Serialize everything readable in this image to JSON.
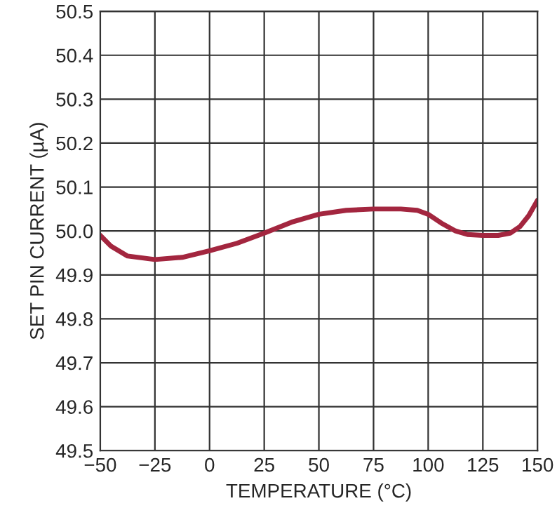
{
  "chart_data": {
    "type": "line",
    "xlabel": "TEMPERATURE (°C)",
    "ylabel": "SET PIN CURRENT (µA)",
    "series": [
      {
        "color": "#a3263f",
        "x": [
          -50,
          -45,
          -37.5,
          -25,
          -12.5,
          0,
          12.5,
          25,
          37.5,
          50,
          62.5,
          75,
          87.5,
          95,
          100,
          106,
          112.5,
          118,
          125,
          132,
          137.5,
          142,
          146,
          150
        ],
        "values": [
          49.99,
          49.965,
          49.943,
          49.935,
          49.94,
          49.955,
          49.972,
          49.995,
          50.02,
          50.038,
          50.047,
          50.05,
          50.05,
          50.047,
          50.038,
          50.018,
          50.0,
          49.992,
          49.99,
          49.99,
          49.995,
          50.01,
          50.035,
          50.07
        ]
      }
    ],
    "xlim": [
      -50,
      150
    ],
    "xticks": [
      {
        "value": -50,
        "label": "−50"
      },
      {
        "value": -25,
        "label": "−25"
      },
      0,
      25,
      50,
      75,
      100,
      125,
      150
    ],
    "ylim": [
      49.5,
      50.5
    ],
    "yticks": [
      {
        "value": 49.5,
        "label": "49.5"
      },
      {
        "value": 49.6,
        "label": "49.6"
      },
      {
        "value": 49.7,
        "label": "49.7"
      },
      {
        "value": 49.8,
        "label": "49.8"
      },
      {
        "value": 49.9,
        "label": "49.9"
      },
      {
        "value": 50.0,
        "label": "50.0"
      },
      {
        "value": 50.1,
        "label": "50.1"
      },
      {
        "value": 50.2,
        "label": "50.2"
      },
      {
        "value": 50.3,
        "label": "50.3"
      },
      {
        "value": 50.4,
        "label": "50.4"
      },
      {
        "value": 50.5,
        "label": "50.5"
      }
    ],
    "grid": true,
    "line_style": "solid"
  }
}
